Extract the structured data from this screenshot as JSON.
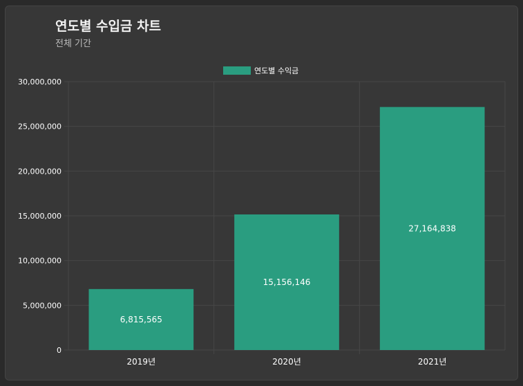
{
  "header": {
    "title": "연도별 수입금 차트",
    "subtitle": "전체 기간"
  },
  "chart_data": {
    "type": "bar",
    "title": "연도별 수입금 차트",
    "subtitle": "전체 기간",
    "categories": [
      "2019년",
      "2020년",
      "2021년"
    ],
    "series": [
      {
        "name": "연도별 수익금",
        "values": [
          6815565,
          15156146,
          27164838
        ],
        "color": "#2a9d80"
      }
    ],
    "data_labels": [
      "6,815,565",
      "15,156,146",
      "27,164,838"
    ],
    "y_ticks": [
      "0",
      "5,000,000",
      "10,000,000",
      "15,000,000",
      "20,000,000",
      "25,000,000",
      "30,000,000"
    ],
    "ylim": [
      0,
      30000000
    ],
    "legend_position": "top-center",
    "grid": true
  },
  "colors": {
    "background": "#2a2a2a",
    "card": "#373737",
    "bar": "#2a9d80",
    "grid": "#474747",
    "text": "#ffffff"
  }
}
